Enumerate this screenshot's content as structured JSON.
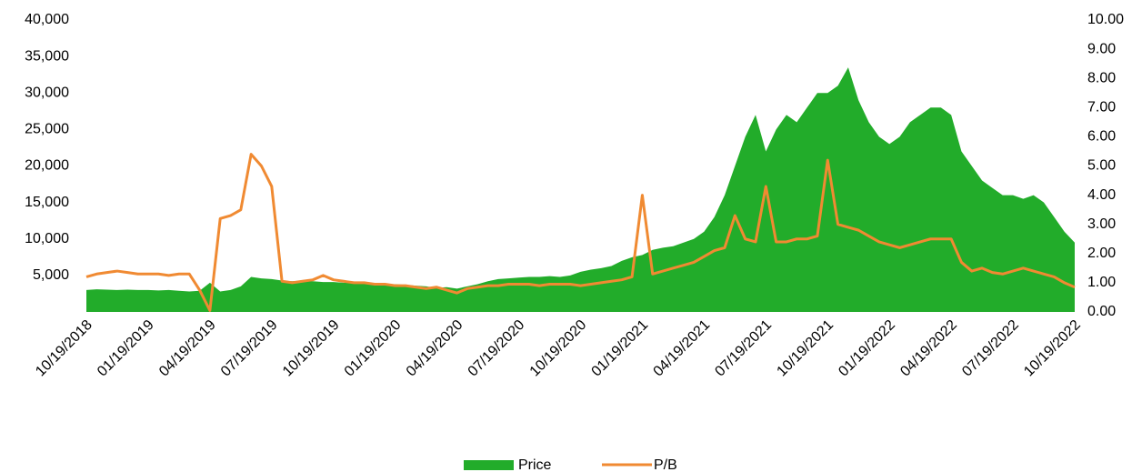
{
  "chart_data": {
    "type": "area-line",
    "categories": [
      "10/19/2018",
      null,
      null,
      null,
      null,
      null,
      "01/19/2019",
      null,
      null,
      null,
      null,
      null,
      "04/19/2019",
      null,
      null,
      null,
      null,
      null,
      "07/19/2019",
      null,
      null,
      null,
      null,
      null,
      "10/19/2019",
      null,
      null,
      null,
      null,
      null,
      "01/19/2020",
      null,
      null,
      null,
      null,
      null,
      "04/19/2020",
      null,
      null,
      null,
      null,
      null,
      "07/19/2020",
      null,
      null,
      null,
      null,
      null,
      "10/19/2020",
      null,
      null,
      null,
      null,
      null,
      "01/19/2021",
      null,
      null,
      null,
      null,
      null,
      "04/19/2021",
      null,
      null,
      null,
      null,
      null,
      "07/19/2021",
      null,
      null,
      null,
      null,
      null,
      "10/19/2021",
      null,
      null,
      null,
      null,
      null,
      "01/19/2022",
      null,
      null,
      null,
      null,
      null,
      "04/19/2022",
      null,
      null,
      null,
      null,
      null,
      "07/19/2022",
      null,
      null,
      null,
      null,
      null,
      "10/19/2022"
    ],
    "series": [
      {
        "name": "Price",
        "type": "area",
        "color": "#22ac2a",
        "values": [
          3000,
          3100,
          3050,
          3000,
          3050,
          3000,
          3000,
          2950,
          3000,
          2900,
          2800,
          2900,
          4000,
          2800,
          3000,
          3500,
          4800,
          4600,
          4500,
          4300,
          4200,
          4300,
          4200,
          4100,
          4100,
          4000,
          4000,
          3900,
          3900,
          3800,
          3800,
          3700,
          3600,
          3500,
          3300,
          3400,
          3200,
          3500,
          3800,
          4200,
          4500,
          4600,
          4700,
          4800,
          4800,
          4900,
          4800,
          5000,
          5500,
          5800,
          6000,
          6300,
          7000,
          7500,
          7800,
          8500,
          8800,
          9000,
          9500,
          10000,
          11000,
          13000,
          16000,
          20000,
          24000,
          27000,
          22000,
          25000,
          27000,
          26000,
          28000,
          30000,
          30000,
          31000,
          33500,
          29000,
          26000,
          24000,
          23000,
          24000,
          26000,
          27000,
          28000,
          28000,
          27000,
          22000,
          20000,
          18000,
          17000,
          16000,
          16000,
          15500,
          16000,
          15000,
          13000,
          11000,
          9500
        ]
      },
      {
        "name": "P/B",
        "type": "line",
        "axis": "y2",
        "color": "#f08a32",
        "values": [
          1.2,
          1.3,
          1.35,
          1.4,
          1.35,
          1.3,
          1.3,
          1.3,
          1.25,
          1.3,
          1.3,
          0.75,
          0.05,
          3.2,
          3.3,
          3.5,
          5.4,
          5.0,
          4.3,
          1.05,
          1.0,
          1.05,
          1.1,
          1.25,
          1.1,
          1.05,
          1.0,
          1.0,
          0.95,
          0.95,
          0.9,
          0.9,
          0.85,
          0.8,
          0.85,
          0.75,
          0.65,
          0.8,
          0.85,
          0.9,
          0.9,
          0.95,
          0.95,
          0.95,
          0.9,
          0.95,
          0.95,
          0.95,
          0.9,
          0.95,
          1.0,
          1.05,
          1.1,
          1.2,
          4.0,
          1.3,
          1.4,
          1.5,
          1.6,
          1.7,
          1.9,
          2.1,
          2.2,
          3.3,
          2.5,
          2.4,
          4.3,
          2.4,
          2.4,
          2.5,
          2.5,
          2.6,
          5.2,
          3.0,
          2.9,
          2.8,
          2.6,
          2.4,
          2.3,
          2.2,
          2.3,
          2.4,
          2.5,
          2.5,
          2.5,
          1.7,
          1.4,
          1.5,
          1.35,
          1.3,
          1.4,
          1.5,
          1.4,
          1.3,
          1.2,
          1.0,
          0.85
        ]
      }
    ],
    "ylim": [
      0,
      40000
    ],
    "yticks": [
      {
        "value": 5000,
        "label": "5,000"
      },
      {
        "value": 10000,
        "label": "10,000"
      },
      {
        "value": 15000,
        "label": "15,000"
      },
      {
        "value": 20000,
        "label": "20,000"
      },
      {
        "value": 25000,
        "label": "25,000"
      },
      {
        "value": 30000,
        "label": "30,000"
      },
      {
        "value": 35000,
        "label": "35,000"
      },
      {
        "value": 40000,
        "label": "40,000"
      }
    ],
    "y2lim": [
      0,
      10
    ],
    "y2ticks": [
      {
        "value": 0,
        "label": "0.00"
      },
      {
        "value": 1,
        "label": "1.00"
      },
      {
        "value": 2,
        "label": "2.00"
      },
      {
        "value": 3,
        "label": "3.00"
      },
      {
        "value": 4,
        "label": "4.00"
      },
      {
        "value": 5,
        "label": "5.00"
      },
      {
        "value": 6,
        "label": "6.00"
      },
      {
        "value": 7,
        "label": "7.00"
      },
      {
        "value": 8,
        "label": "8.00"
      },
      {
        "value": 9,
        "label": "9.00"
      },
      {
        "value": 10,
        "label": "10.00"
      }
    ],
    "legend": "bottom"
  }
}
